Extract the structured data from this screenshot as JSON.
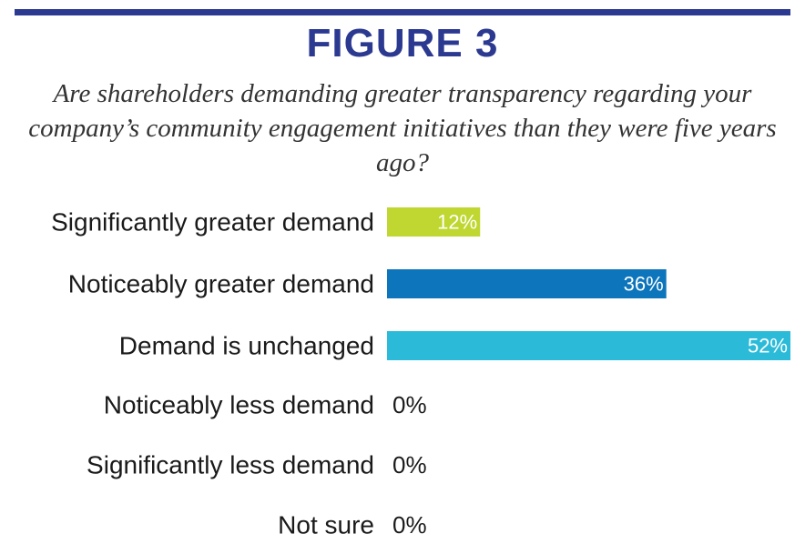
{
  "figure_label": "FIGURE 3",
  "chart_data": {
    "type": "bar",
    "orientation": "horizontal",
    "title": "Are shareholders demanding greater transparency regarding your company’s community engagement initiatives than they were five years ago?",
    "categories": [
      "Significantly greater demand",
      "Noticeably greater demand",
      "Demand is unchanged",
      "Noticeably less demand",
      "Significantly less demand",
      "Not sure"
    ],
    "values": [
      12,
      36,
      52,
      0,
      0,
      0
    ],
    "value_labels": [
      "12%",
      "36%",
      "52%",
      "0%",
      "0%",
      "0%"
    ],
    "colors": [
      "#bfd730",
      "#0d75bc",
      "#2bbbd9",
      "#000000",
      "#000000",
      "#000000"
    ],
    "xlim": [
      0,
      52
    ],
    "unit": "%",
    "xlabel": "",
    "ylabel": ""
  },
  "colors": {
    "rule": "#2b3990",
    "figure_label": "#2b3990"
  }
}
